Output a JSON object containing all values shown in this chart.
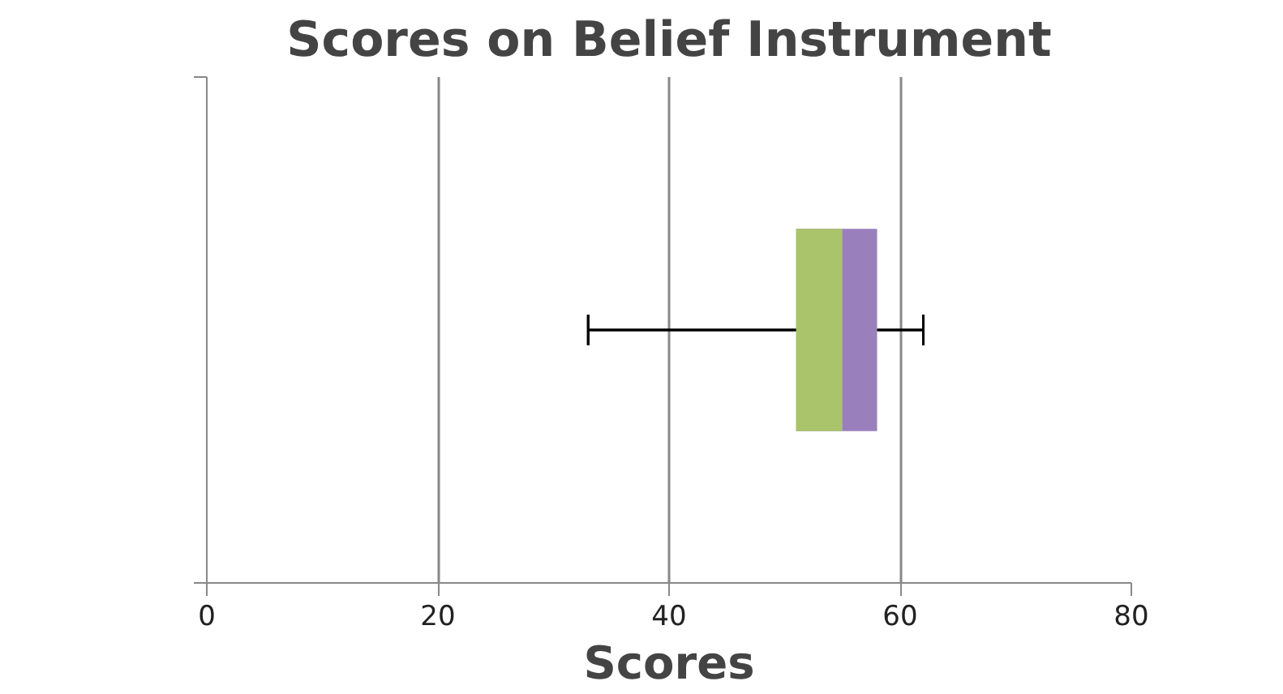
{
  "chart_data": {
    "type": "box",
    "title": "Scores on Belief Instrument",
    "xlabel": "Scores",
    "orientation": "horizontal",
    "categories": [
      null
    ],
    "series": [
      {
        "boxes": [
          {
            "low": 33,
            "q1": 51,
            "median": 55,
            "q3": 58,
            "high": 62
          }
        ],
        "color": "#a9c46b"
      },
      {
        "boxes": [
          {
            "low": 33,
            "q1": 51,
            "median": 55,
            "q3": 58,
            "high": 62
          }
        ],
        "color": "#9a7fbd"
      }
    ],
    "xlim": [
      0,
      80
    ],
    "xticks": [
      0,
      20,
      40,
      60,
      80
    ],
    "grid": "x",
    "tick_labels": "x"
  }
}
